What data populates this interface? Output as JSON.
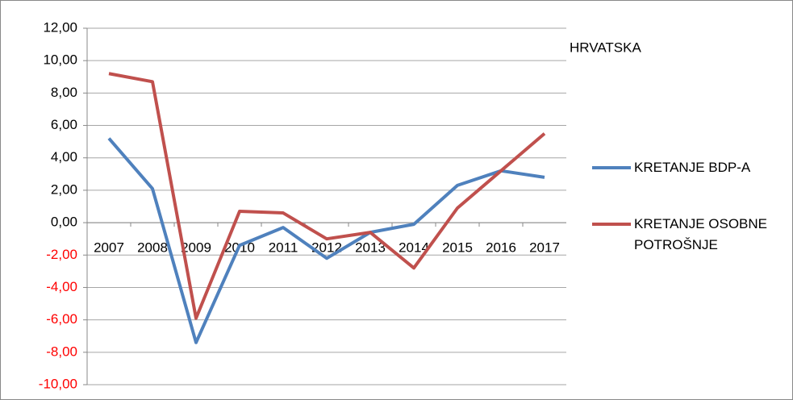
{
  "chart_data": {
    "type": "line",
    "title": "HRVATSKA",
    "categories": [
      "2007",
      "2008",
      "2009",
      "2010",
      "2011",
      "2012",
      "2013",
      "2014",
      "2015",
      "2016",
      "2017"
    ],
    "series": [
      {
        "name": "KRETANJE BDP-A",
        "color": "#4f81bd",
        "values": [
          5.2,
          2.1,
          -7.4,
          -1.4,
          -0.3,
          -2.2,
          -0.6,
          -0.1,
          2.3,
          3.2,
          2.8
        ]
      },
      {
        "name": "KRETANJE OSOBNE POTROŠNJE",
        "color": "#c0504d",
        "values": [
          9.2,
          8.7,
          -5.9,
          0.7,
          0.6,
          -1.0,
          -0.6,
          -2.8,
          0.9,
          3.2,
          5.5
        ]
      }
    ],
    "ylim": [
      -10,
      12
    ],
    "yticks": [
      {
        "value": -10,
        "label": "-10,00"
      },
      {
        "value": -8,
        "label": "-8,00"
      },
      {
        "value": -6,
        "label": "-6,00"
      },
      {
        "value": -4,
        "label": "-4,00"
      },
      {
        "value": -2,
        "label": "-2,00"
      },
      {
        "value": 0,
        "label": "0,00"
      },
      {
        "value": 2,
        "label": "2,00"
      },
      {
        "value": 4,
        "label": "4,00"
      },
      {
        "value": 6,
        "label": "6,00"
      },
      {
        "value": 8,
        "label": "8,00"
      },
      {
        "value": 10,
        "label": "10,00"
      },
      {
        "value": 12,
        "label": "12,00"
      }
    ],
    "negative_tick_color": "#ff0000",
    "grid": true,
    "legend": "right"
  }
}
